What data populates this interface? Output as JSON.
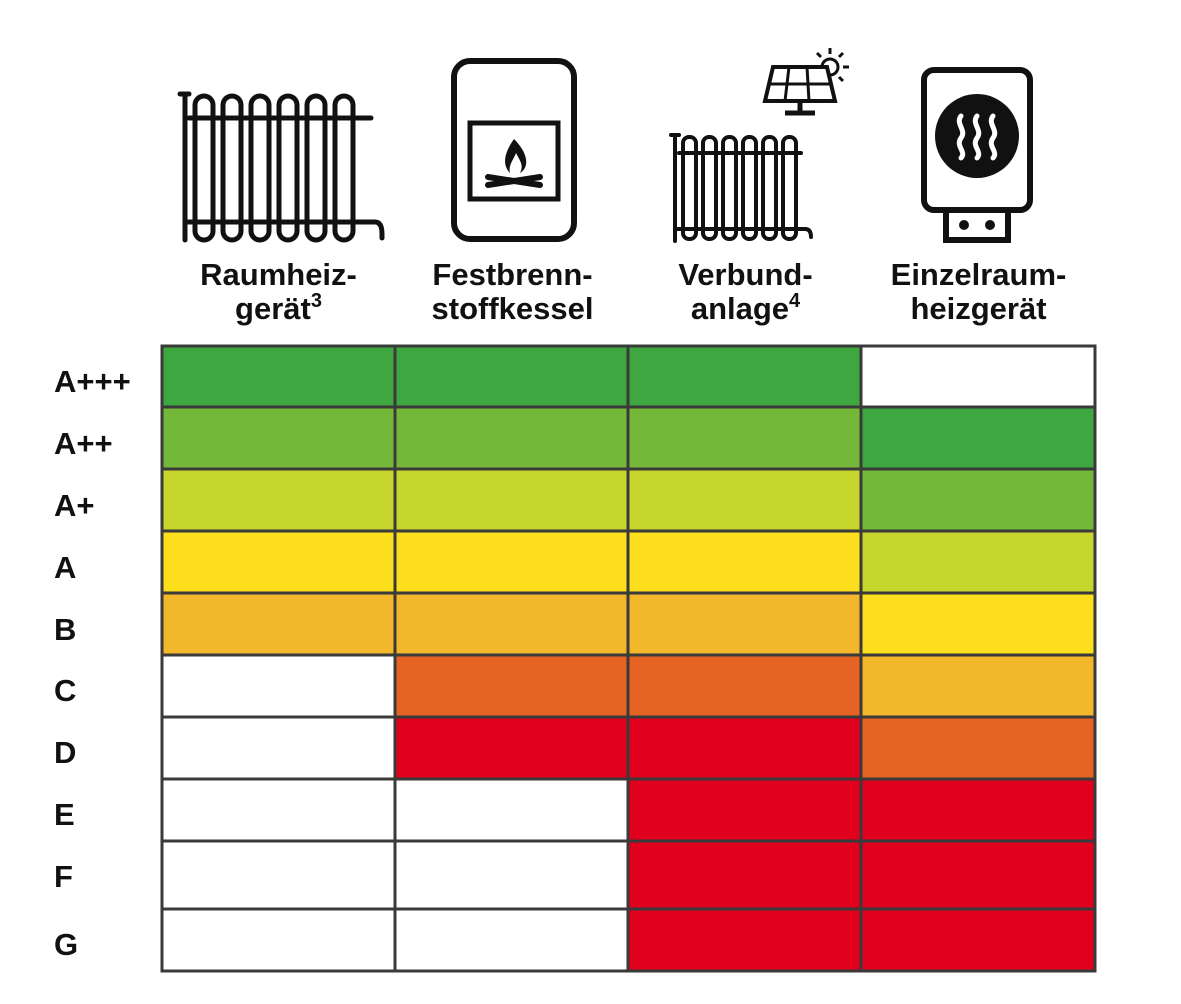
{
  "chart_data": {
    "type": "table",
    "columns": [
      {
        "line1": "Raumheiz-",
        "line2": "gerät",
        "sup": "3",
        "icon": "radiator-icon"
      },
      {
        "line1": "Festbrenn-",
        "line2": "stoffkessel",
        "sup": "",
        "icon": "solid-fuel-boiler-icon"
      },
      {
        "line1": "Verbund-",
        "line2": "anlage",
        "sup": "4",
        "icon": "solar-radiator-icon"
      },
      {
        "line1": "Einzelraum-",
        "line2": "heizgerät",
        "sup": "",
        "icon": "room-heater-icon"
      }
    ],
    "rows": [
      "A+++",
      "A++",
      "A+",
      "A",
      "B",
      "C",
      "D",
      "E",
      "F",
      "G"
    ],
    "colors": {
      "dark_green": "#3ea740",
      "green": "#74b83a",
      "yellow_green": "#c6d62d",
      "yellow": "#fcde1c",
      "orange": "#f3b72b",
      "dark_orange": "#e66423",
      "red": "#e1001d",
      "empty": "#ffffff",
      "border": "#3a3a3a"
    },
    "cells": [
      [
        "dark_green",
        "dark_green",
        "dark_green",
        "empty"
      ],
      [
        "green",
        "green",
        "green",
        "dark_green"
      ],
      [
        "yellow_green",
        "yellow_green",
        "yellow_green",
        "green"
      ],
      [
        "yellow",
        "yellow",
        "yellow",
        "yellow_green"
      ],
      [
        "orange",
        "orange",
        "orange",
        "yellow"
      ],
      [
        "empty",
        "dark_orange",
        "dark_orange",
        "orange"
      ],
      [
        "empty",
        "red",
        "red",
        "dark_orange"
      ],
      [
        "empty",
        "empty",
        "red",
        "red"
      ],
      [
        "empty",
        "empty",
        "red",
        "red"
      ],
      [
        "empty",
        "empty",
        "red",
        "red"
      ]
    ]
  }
}
